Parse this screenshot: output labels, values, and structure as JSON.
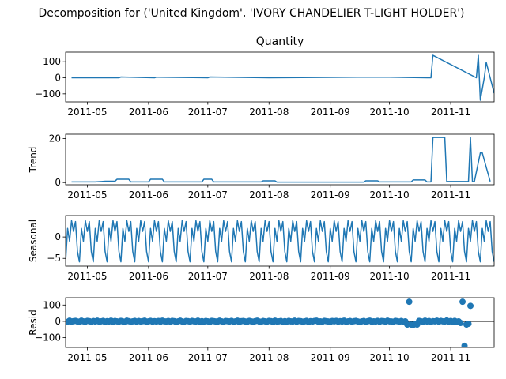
{
  "figure": {
    "suptitle": "Decomposition for ('United Kingdom', 'IVORY CHANDELIER T-LIGHT HOLDER')"
  },
  "x_ticks": [
    "2011-05",
    "2011-06",
    "2011-07",
    "2011-08",
    "2011-09",
    "2011-10",
    "2011-11"
  ],
  "colors": {
    "line": "#1f77b4",
    "marker": "#1f77b4",
    "zero_line": "#000000"
  },
  "chart_data": [
    {
      "type": "line",
      "panel": "observed",
      "title": "Quantity",
      "ylabel": "",
      "xlim": [
        "2011-04-20",
        "2011-11-23"
      ],
      "ylim": [
        -150,
        160
      ],
      "yticks": [
        100,
        0,
        -100
      ],
      "series": [
        {
          "x": [
            "2011-04-23",
            "2011-05-17",
            "2011-05-18",
            "2011-06-04",
            "2011-06-05",
            "2011-07-01",
            "2011-07-02",
            "2011-08-01",
            "2011-09-15",
            "2011-10-01",
            "2011-10-20",
            "2011-10-22",
            "2011-10-23",
            "2011-11-14",
            "2011-11-15",
            "2011-11-16",
            "2011-11-18",
            "2011-11-19",
            "2011-11-21",
            "2011-11-23"
          ],
          "y": [
            0,
            0,
            5,
            0,
            4,
            0,
            5,
            0,
            4,
            4,
            0,
            0,
            140,
            0,
            140,
            -140,
            0,
            96,
            0,
            -96
          ]
        }
      ]
    },
    {
      "type": "line",
      "panel": "trend",
      "title": "",
      "ylabel": "Trend",
      "xlim": [
        "2011-04-20",
        "2011-11-23"
      ],
      "ylim": [
        -1,
        22
      ],
      "yticks": [
        20,
        0
      ],
      "series": [
        {
          "x": [
            "2011-04-23",
            "2011-05-05",
            "2011-05-10",
            "2011-05-15",
            "2011-05-16",
            "2011-05-22",
            "2011-05-23",
            "2011-06-01",
            "2011-06-02",
            "2011-06-08",
            "2011-06-09",
            "2011-06-28",
            "2011-06-29",
            "2011-07-03",
            "2011-07-04",
            "2011-07-28",
            "2011-07-29",
            "2011-08-04",
            "2011-08-05",
            "2011-09-18",
            "2011-09-19",
            "2011-09-25",
            "2011-09-26",
            "2011-10-12",
            "2011-10-13",
            "2011-10-19",
            "2011-10-20",
            "2011-10-22",
            "2011-10-23",
            "2011-10-29",
            "2011-10-30",
            "2011-11-10",
            "2011-11-11",
            "2011-11-12",
            "2011-11-13",
            "2011-11-16",
            "2011-11-17",
            "2011-11-21"
          ],
          "y": [
            0.3,
            0.3,
            0.6,
            0.6,
            1.5,
            1.5,
            0.3,
            0.3,
            1.5,
            1.5,
            0.3,
            0.3,
            1.5,
            1.5,
            0.3,
            0.3,
            0.8,
            0.8,
            0.2,
            0.2,
            0.8,
            0.8,
            0.3,
            0.3,
            1.2,
            1.2,
            0.3,
            0.3,
            20.5,
            20.5,
            0.5,
            0.5,
            20.5,
            0.5,
            0.5,
            13.5,
            13.5,
            0.5
          ]
        }
      ]
    },
    {
      "type": "line",
      "panel": "seasonal",
      "title": "",
      "ylabel": "Seasonal",
      "xlim": [
        "2011-04-20",
        "2011-11-23"
      ],
      "ylim": [
        -6.8,
        5.0
      ],
      "yticks": [
        0,
        -5
      ],
      "series": [
        {
          "x_start": "2011-04-20",
          "x_step_days": 1,
          "period_days": 7,
          "y": [
            -5.8,
            2.0,
            -1.0,
            3.8,
            1.3,
            3.6,
            -3.4,
            -5.8,
            2.0,
            -1.0,
            3.8,
            1.3,
            3.6,
            -3.4,
            -5.8,
            2.0,
            -1.0,
            3.8,
            1.3,
            3.6,
            -3.4,
            -5.8,
            2.0,
            -1.0,
            3.8,
            1.3,
            3.6,
            -3.4,
            -5.8,
            2.0,
            -1.0,
            3.8,
            1.3,
            3.6,
            -3.4,
            -5.8,
            2.0,
            -1.0,
            3.8,
            1.3,
            3.6,
            -3.4,
            -5.8,
            2.0,
            -1.0,
            3.8,
            1.3,
            3.6,
            -3.4,
            -5.8,
            2.0,
            -1.0,
            3.8,
            1.3,
            3.6,
            -3.4,
            -5.8,
            2.0,
            -1.0,
            3.8,
            1.3,
            3.6,
            -3.4,
            -5.8,
            2.0,
            -1.0,
            3.8,
            1.3,
            3.6,
            -3.4,
            -5.8,
            2.0,
            -1.0,
            3.8,
            1.3,
            3.6,
            -3.4,
            -5.8,
            2.0,
            -1.0,
            3.8,
            1.3,
            3.6,
            -3.4,
            -5.8,
            2.0,
            -1.0,
            3.8,
            1.3,
            3.6,
            -3.4,
            -5.8,
            2.0,
            -1.0,
            3.8,
            1.3,
            3.6,
            -3.4,
            -5.8,
            2.0,
            -1.0,
            3.8,
            1.3,
            3.6,
            -3.4,
            -5.8,
            2.0,
            -1.0,
            3.8,
            1.3,
            3.6,
            -3.4,
            -5.8,
            2.0,
            -1.0,
            3.8,
            1.3,
            3.6,
            -3.4,
            -5.8,
            2.0,
            -1.0,
            3.8,
            1.3,
            3.6,
            -3.4,
            -5.8,
            2.0,
            -1.0,
            3.8,
            1.3,
            3.6,
            -3.4,
            -5.8,
            2.0,
            -1.0,
            3.8,
            1.3,
            3.6,
            -3.4,
            -5.8,
            2.0,
            -1.0,
            3.8,
            1.3,
            3.6,
            -3.4,
            -5.8,
            2.0,
            -1.0,
            3.8,
            1.3,
            3.6,
            -3.4,
            -5.8,
            2.0,
            -1.0,
            3.8,
            1.3,
            3.6,
            -3.4,
            -5.8,
            2.0,
            -1.0,
            3.8,
            1.3,
            3.6,
            -3.4,
            -5.8,
            2.0,
            -1.0,
            3.8,
            1.3,
            3.6,
            -3.4,
            -5.8,
            2.0,
            -1.0,
            3.8,
            1.3,
            3.6,
            -3.4,
            -5.8,
            2.0,
            -1.0,
            3.8,
            1.3,
            3.6,
            -3.4,
            -5.8,
            2.0,
            -1.0,
            3.8,
            1.3,
            3.6,
            -3.4,
            -5.8,
            2.0,
            -1.0,
            3.8,
            1.3,
            3.6,
            -3.4,
            -5.8,
            2.0,
            -1.0,
            3.8,
            1.3,
            3.6,
            -3.4,
            -5.8,
            2.0,
            -1.0,
            3.8,
            1.3,
            3.6,
            -3.4,
            -5.8
          ]
        }
      ]
    },
    {
      "type": "scatter",
      "panel": "resid",
      "title": "",
      "ylabel": "Resid",
      "xlim": [
        "2011-04-20",
        "2011-11-23"
      ],
      "ylim": [
        -160,
        145
      ],
      "yticks": [
        100,
        0,
        -100
      ],
      "zero_line": true,
      "series": [
        {
          "x_start": "2011-04-21",
          "x_step_days": 1,
          "y": [
            -3,
            4,
            -2,
            1,
            3,
            -1,
            -4,
            4,
            0,
            -2,
            3,
            1,
            -3,
            2,
            -1,
            4,
            -2,
            0,
            3,
            -4,
            1,
            -1,
            4,
            -3,
            2,
            0,
            -2,
            3,
            -1,
            -4,
            4,
            1,
            -2,
            0,
            3,
            -3,
            2,
            -1,
            1,
            4,
            -4,
            0,
            3,
            -2,
            1,
            -1,
            2,
            -3,
            4,
            0,
            -1,
            2,
            -2,
            3,
            1,
            -4,
            0,
            4,
            -1,
            -3,
            2,
            1,
            -2,
            3,
            0,
            -1,
            4,
            -3,
            1,
            -2,
            2,
            0,
            -4,
            3,
            1,
            -1,
            -2,
            4,
            0,
            -3,
            2,
            1,
            -1,
            3,
            -2,
            0,
            4,
            -4,
            1,
            2,
            -1,
            -3,
            3,
            0,
            -2,
            1,
            4,
            -1,
            -3,
            2,
            0,
            -2,
            3,
            1,
            -4,
            4,
            -1,
            0,
            2,
            -3,
            1,
            -2,
            3,
            0,
            -1,
            4,
            -3,
            2,
            1,
            -2,
            0,
            3,
            -4,
            1,
            -1,
            2,
            4,
            -3,
            0,
            -2,
            3,
            1,
            -1,
            -4,
            2,
            0,
            3,
            -2,
            1,
            -1,
            4,
            -3,
            0,
            2,
            -2,
            1,
            3,
            -1,
            -4,
            0,
            2,
            -3,
            1,
            4,
            -2,
            0,
            -1,
            3,
            -3,
            2,
            1,
            -2,
            4,
            0,
            -1,
            -3,
            3,
            1,
            -2,
            2,
            -4,
            0,
            -20,
            120,
            -20,
            -22,
            -18,
            -20,
            3,
            0,
            -2,
            4,
            -1,
            2,
            -3,
            1,
            0,
            4,
            -2,
            3,
            0,
            -1,
            5,
            -3,
            2,
            -4,
            3,
            -2,
            0,
            -10,
            120,
            -150,
            -20,
            -15,
            95
          ]
        }
      ]
    }
  ]
}
